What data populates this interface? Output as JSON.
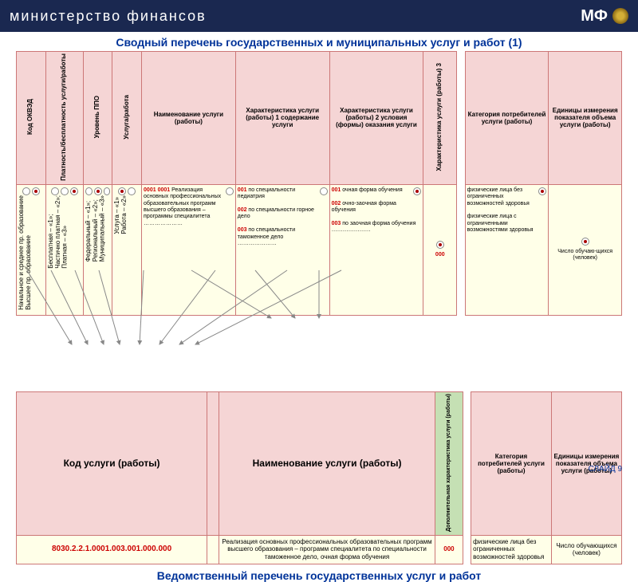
{
  "header": {
    "ministry": "министерство финансов",
    "logo": "МФ"
  },
  "title1": "Сводный перечень государственных и муниципальных услуг и работ (1)",
  "title2": "Ведомственный перечень государственных услуг и работ",
  "slide": "СЛАЙД 9",
  "t1": {
    "h": [
      "Код ОКВЭД",
      "Платность/бесплатность услуги/работы",
      "Уровень ППО",
      "Услуга/работа",
      "Наименование услуги (работы)",
      "Характеристика услуги (работы) 1 содержание услуги",
      "Характеристика услуги (работы) 2 условия (формы) оказания услуги",
      "Характеристика услуги (работы) 3",
      "Категория потребителей услуги (работы)",
      "Единицы измерения показателя объема услуги (работы)"
    ],
    "r1": {
      "okved": "Начальное и среднее пр. образование\nВысшее пр. образование",
      "pay": "Бесплатная – «1»;\nЧастично платная – «2»;\nПлатная – «3»",
      "level": "Федеральный – «1»;\nРегиональный – «2»;\nМуниципальный – «3»",
      "svc": "Услуга – «1»\nРабота – «2»",
      "name": "0001 Реализация основных профессиональных образовательных программ высшего образования – программы специалитета\n…………………",
      "ch1": "001 по специальности педиатрия\n\n002 по специальности горное дело\n\n003 по специальности таможенное дело\n…………………",
      "ch2": "001 очная форма обучения\n\n002 очно-заочная форма обучения\n\n003 по заочная форма обучения\n…………………",
      "ch3": "000",
      "cat": "физические лица без ограниченных возможностей здоровья\n\nфизические лица с ограниченными возможностями здоровья",
      "unit": "Число обучаю-щихся (человек)"
    }
  },
  "t2": {
    "h": [
      "Код услуги (работы)",
      "",
      "Наименование услуги (работы)",
      "Дополнительная характеристика услуги (работы)",
      "Категория потребителей услуги (работы)",
      "Единицы измерения показателя объема услуги (работы)"
    ],
    "code": "8030.2.2.1.0001.003.001.000.000",
    "name": "Реализация основных профессиональных образовательных программ высшего образования – программ специалитета по специальности таможенное дело, очная  форма обучения",
    "ch3": "000",
    "cat": "физические лица без ограниченных возможностей здоровья",
    "unit": "Число обучающихся (человек)"
  },
  "colors": {
    "hdr": "#f5d5d5",
    "data": "#ffffe8",
    "green": "#c5e0b4",
    "border": "#c77",
    "title": "#003399",
    "red": "#c00"
  }
}
